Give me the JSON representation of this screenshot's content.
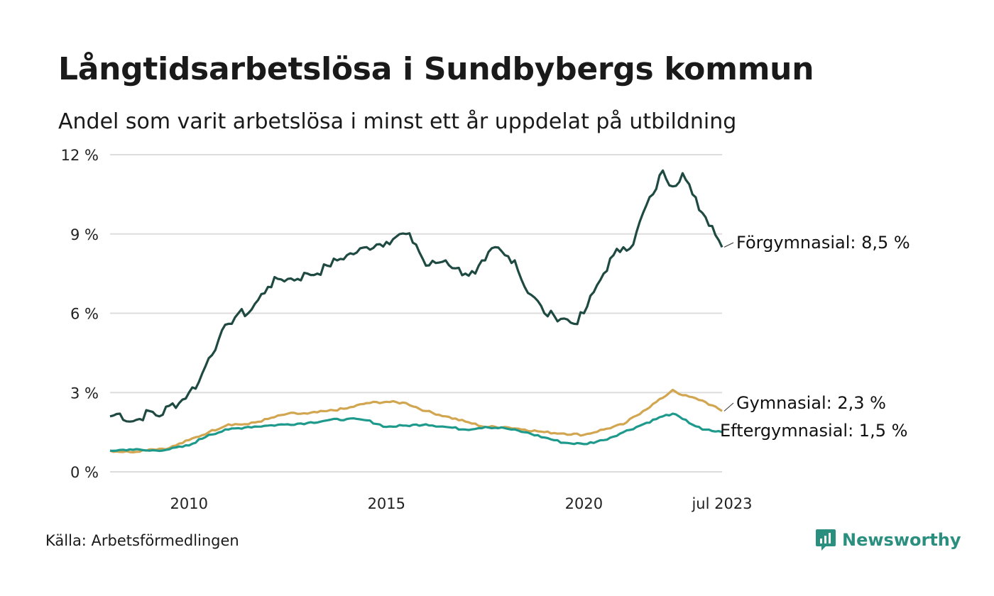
{
  "header": {
    "title": "Långtidsarbetslösa i Sundbybergs kommun",
    "subtitle": "Andel som varit arbetslösa i minst ett år uppdelat på utbildning"
  },
  "footer": {
    "source": "Källa: Arbetsförmedlingen",
    "brand": "Newsworthy"
  },
  "colors": {
    "forgymnasial": "#1f4a42",
    "gymnasial": "#d2a650",
    "eftergymnasial": "#1e9a8c",
    "grid": "#dddddd",
    "brand": "#2b8f80"
  },
  "chart_data": {
    "type": "line",
    "title": "Långtidsarbetslösa i Sundbybergs kommun",
    "subtitle": "Andel som varit arbetslösa i minst ett år uppdelat på utbildning",
    "xlabel": "",
    "ylabel": "",
    "xlim": [
      2008.0,
      2023.5
    ],
    "ylim": [
      0,
      12
    ],
    "y_ticks": [
      0,
      3,
      6,
      9,
      12
    ],
    "y_tick_labels": [
      "0 %",
      "3 %",
      "6 %",
      "9 %",
      "12 %"
    ],
    "x_ticks": [
      2010,
      2015,
      2020,
      2023.5
    ],
    "x_tick_labels": [
      "2010",
      "2015",
      "2020",
      "jul 2023"
    ],
    "grid": true,
    "series": [
      {
        "name": "Förgymnasial",
        "end_label": "Förgymnasial: 8,5 %",
        "color_key": "forgymnasial",
        "points": [
          [
            2008.0,
            2.1
          ],
          [
            2008.25,
            2.2
          ],
          [
            2008.5,
            1.9
          ],
          [
            2008.75,
            2.0
          ],
          [
            2009.0,
            2.3
          ],
          [
            2009.25,
            2.1
          ],
          [
            2009.5,
            2.5
          ],
          [
            2009.75,
            2.6
          ],
          [
            2010.0,
            3.0
          ],
          [
            2010.25,
            3.4
          ],
          [
            2010.5,
            4.3
          ],
          [
            2010.75,
            5.0
          ],
          [
            2011.0,
            5.6
          ],
          [
            2011.25,
            6.0
          ],
          [
            2011.5,
            6.0
          ],
          [
            2011.75,
            6.5
          ],
          [
            2012.0,
            7.0
          ],
          [
            2012.25,
            7.3
          ],
          [
            2012.5,
            7.3
          ],
          [
            2012.75,
            7.3
          ],
          [
            2013.0,
            7.5
          ],
          [
            2013.25,
            7.5
          ],
          [
            2013.5,
            7.8
          ],
          [
            2013.75,
            8.0
          ],
          [
            2014.0,
            8.2
          ],
          [
            2014.25,
            8.3
          ],
          [
            2014.5,
            8.5
          ],
          [
            2014.75,
            8.6
          ],
          [
            2015.0,
            8.7
          ],
          [
            2015.25,
            8.9
          ],
          [
            2015.5,
            9.0
          ],
          [
            2015.75,
            8.6
          ],
          [
            2016.0,
            7.8
          ],
          [
            2016.25,
            7.9
          ],
          [
            2016.5,
            8.0
          ],
          [
            2016.75,
            7.7
          ],
          [
            2017.0,
            7.5
          ],
          [
            2017.25,
            7.5
          ],
          [
            2017.5,
            8.0
          ],
          [
            2017.75,
            8.5
          ],
          [
            2018.0,
            8.2
          ],
          [
            2018.25,
            8.0
          ],
          [
            2018.5,
            7.0
          ],
          [
            2018.75,
            6.6
          ],
          [
            2019.0,
            6.0
          ],
          [
            2019.25,
            5.9
          ],
          [
            2019.5,
            5.8
          ],
          [
            2019.75,
            5.6
          ],
          [
            2020.0,
            6.0
          ],
          [
            2020.25,
            6.8
          ],
          [
            2020.5,
            7.5
          ],
          [
            2020.75,
            8.2
          ],
          [
            2021.0,
            8.5
          ],
          [
            2021.25,
            8.6
          ],
          [
            2021.5,
            9.8
          ],
          [
            2021.75,
            10.5
          ],
          [
            2022.0,
            11.4
          ],
          [
            2022.25,
            10.8
          ],
          [
            2022.5,
            11.3
          ],
          [
            2022.75,
            10.5
          ],
          [
            2023.0,
            9.8
          ],
          [
            2023.25,
            9.3
          ],
          [
            2023.5,
            8.5
          ]
        ]
      },
      {
        "name": "Gymnasial",
        "end_label": "Gymnasial: 2,3 %",
        "color_key": "gymnasial",
        "points": [
          [
            2008.0,
            0.8
          ],
          [
            2008.5,
            0.75
          ],
          [
            2009.0,
            0.85
          ],
          [
            2009.5,
            0.9
          ],
          [
            2010.0,
            1.2
          ],
          [
            2010.5,
            1.5
          ],
          [
            2011.0,
            1.8
          ],
          [
            2011.5,
            1.8
          ],
          [
            2012.0,
            2.0
          ],
          [
            2012.5,
            2.2
          ],
          [
            2013.0,
            2.2
          ],
          [
            2013.5,
            2.3
          ],
          [
            2014.0,
            2.4
          ],
          [
            2014.5,
            2.6
          ],
          [
            2015.0,
            2.65
          ],
          [
            2015.5,
            2.6
          ],
          [
            2016.0,
            2.3
          ],
          [
            2016.5,
            2.1
          ],
          [
            2017.0,
            1.9
          ],
          [
            2017.5,
            1.7
          ],
          [
            2018.0,
            1.7
          ],
          [
            2018.5,
            1.6
          ],
          [
            2019.0,
            1.5
          ],
          [
            2019.5,
            1.45
          ],
          [
            2020.0,
            1.4
          ],
          [
            2020.5,
            1.6
          ],
          [
            2021.0,
            1.8
          ],
          [
            2021.5,
            2.3
          ],
          [
            2022.0,
            2.8
          ],
          [
            2022.25,
            3.1
          ],
          [
            2022.5,
            2.9
          ],
          [
            2023.0,
            2.7
          ],
          [
            2023.5,
            2.3
          ]
        ]
      },
      {
        "name": "Eftergymnasial",
        "end_label": "Eftergymnasial: 1,5 %",
        "color_key": "eftergymnasial",
        "points": [
          [
            2008.0,
            0.8
          ],
          [
            2008.5,
            0.85
          ],
          [
            2009.0,
            0.8
          ],
          [
            2009.5,
            0.85
          ],
          [
            2010.0,
            1.0
          ],
          [
            2010.5,
            1.4
          ],
          [
            2011.0,
            1.6
          ],
          [
            2011.5,
            1.7
          ],
          [
            2012.0,
            1.75
          ],
          [
            2012.5,
            1.8
          ],
          [
            2013.0,
            1.85
          ],
          [
            2013.5,
            1.95
          ],
          [
            2014.0,
            2.0
          ],
          [
            2014.5,
            1.95
          ],
          [
            2015.0,
            1.7
          ],
          [
            2015.5,
            1.75
          ],
          [
            2016.0,
            1.8
          ],
          [
            2016.5,
            1.7
          ],
          [
            2017.0,
            1.6
          ],
          [
            2017.5,
            1.7
          ],
          [
            2018.0,
            1.65
          ],
          [
            2018.5,
            1.5
          ],
          [
            2019.0,
            1.3
          ],
          [
            2019.5,
            1.1
          ],
          [
            2020.0,
            1.05
          ],
          [
            2020.5,
            1.2
          ],
          [
            2021.0,
            1.5
          ],
          [
            2021.5,
            1.8
          ],
          [
            2022.0,
            2.1
          ],
          [
            2022.25,
            2.2
          ],
          [
            2022.5,
            2.0
          ],
          [
            2023.0,
            1.6
          ],
          [
            2023.5,
            1.5
          ]
        ]
      }
    ]
  }
}
